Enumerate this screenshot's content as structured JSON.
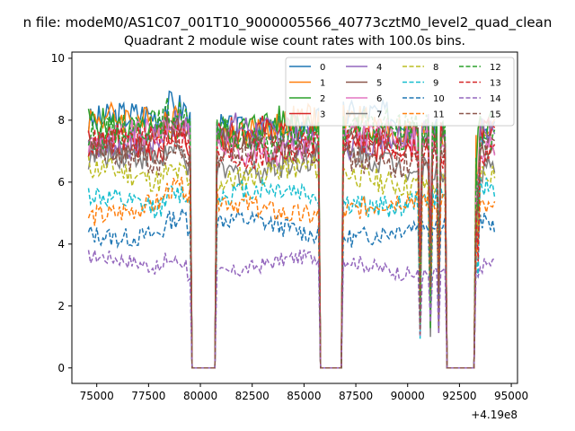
{
  "figure": {
    "suptitle": "n file: modeM0/AS1C07_001T10_9000005566_40773cztM0_level2_quad_clean",
    "x_offset_label": "+4.19e8"
  },
  "chart_data": {
    "type": "line",
    "title": "Quadrant 2 module wise count rates with 100.0s bins.",
    "xlabel": "",
    "ylabel": "",
    "xlim": [
      73800,
      95300
    ],
    "ylim": [
      -0.5,
      10.2
    ],
    "x_ticks": [
      75000,
      77500,
      80000,
      82500,
      85000,
      87500,
      90000,
      92500,
      95000
    ],
    "x_tick_labels": [
      "75000",
      "77500",
      "80000",
      "82500",
      "85000",
      "87500",
      "90000",
      "92500",
      "95000"
    ],
    "y_ticks": [
      0,
      2,
      4,
      6,
      8,
      10
    ],
    "y_tick_labels": [
      "0",
      "2",
      "4",
      "6",
      "8",
      "10"
    ],
    "grid": false,
    "legend_position": "top-right",
    "legend_columns": 4,
    "gaps": [
      [
        79600,
        80700
      ],
      [
        85800,
        86800
      ],
      [
        91900,
        93200
      ]
    ],
    "series": [
      {
        "name": "0",
        "color": "#1f77b4",
        "dash": "solid",
        "level": 7.9
      },
      {
        "name": "1",
        "color": "#ff7f0e",
        "dash": "solid",
        "level": 7.8
      },
      {
        "name": "2",
        "color": "#2ca02c",
        "dash": "solid",
        "level": 7.7
      },
      {
        "name": "3",
        "color": "#d62728",
        "dash": "solid",
        "level": 7.4
      },
      {
        "name": "4",
        "color": "#9467bd",
        "dash": "solid",
        "level": 7.5
      },
      {
        "name": "5",
        "color": "#8c564b",
        "dash": "solid",
        "level": 7.2
      },
      {
        "name": "6",
        "color": "#e377c2",
        "dash": "solid",
        "level": 7.3
      },
      {
        "name": "7",
        "color": "#7f7f7f",
        "dash": "solid",
        "level": 6.6
      },
      {
        "name": "8",
        "color": "#bcbd22",
        "dash": "dashed",
        "level": 6.2
      },
      {
        "name": "9",
        "color": "#17becf",
        "dash": "dashed",
        "level": 5.5
      },
      {
        "name": "10",
        "color": "#1f77b4",
        "dash": "dashed",
        "level": 4.5
      },
      {
        "name": "11",
        "color": "#ff7f0e",
        "dash": "dashed",
        "level": 5.2
      },
      {
        "name": "12",
        "color": "#2ca02c",
        "dash": "dashed",
        "level": 7.6
      },
      {
        "name": "13",
        "color": "#d62728",
        "dash": "dashed",
        "level": 7.1
      },
      {
        "name": "14",
        "color": "#9467bd",
        "dash": "dashed",
        "level": 3.3
      },
      {
        "name": "15",
        "color": "#8c564b",
        "dash": "dashed",
        "level": 6.9
      }
    ]
  }
}
